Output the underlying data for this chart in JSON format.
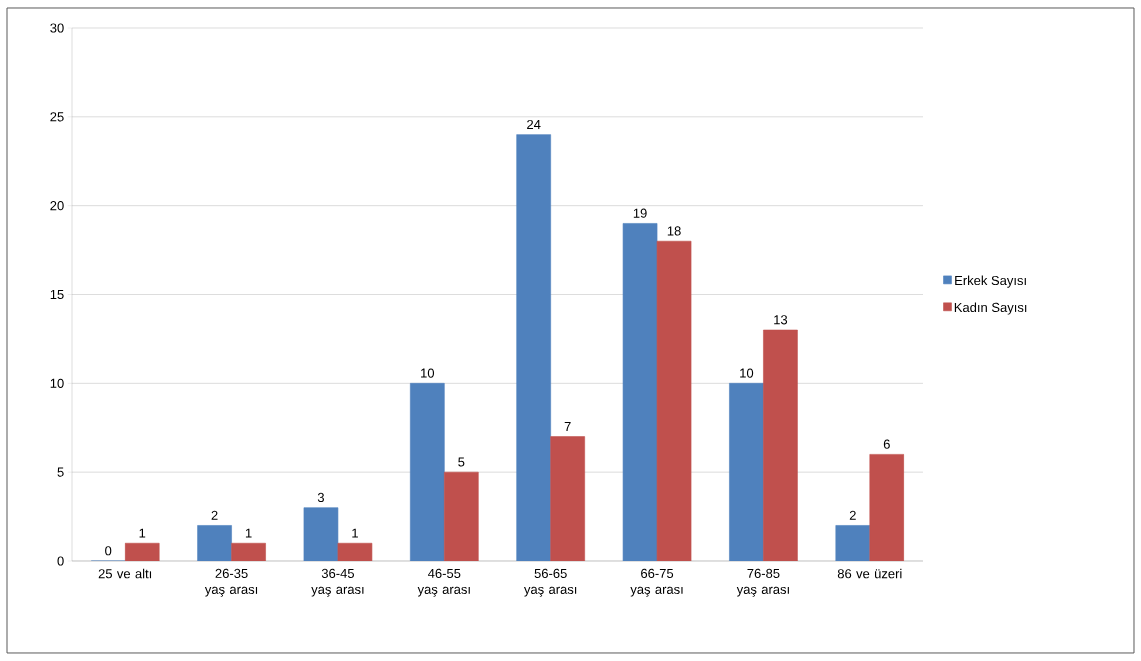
{
  "chart_data": {
    "type": "bar",
    "categories": [
      "25 ve altı",
      "26-35 yaş arası",
      "36-45 yaş arası",
      "46-55 yaş arası",
      "56-65 yaş arası",
      "66-75 yaş arası",
      "76-85 yaş arası",
      "86 ve üzeri"
    ],
    "series": [
      {
        "name": "Erkek Sayısı",
        "color": "#4f81bd",
        "values": [
          0,
          2,
          3,
          10,
          24,
          19,
          10,
          2
        ]
      },
      {
        "name": "Kadın Sayısı",
        "color": "#c0504d",
        "values": [
          1,
          1,
          1,
          5,
          7,
          18,
          13,
          6
        ]
      }
    ],
    "ylim": [
      0,
      30
    ],
    "yticks": [
      0,
      5,
      10,
      15,
      20,
      25,
      30
    ],
    "grid": "y",
    "legend": "right",
    "data_labels": true
  }
}
